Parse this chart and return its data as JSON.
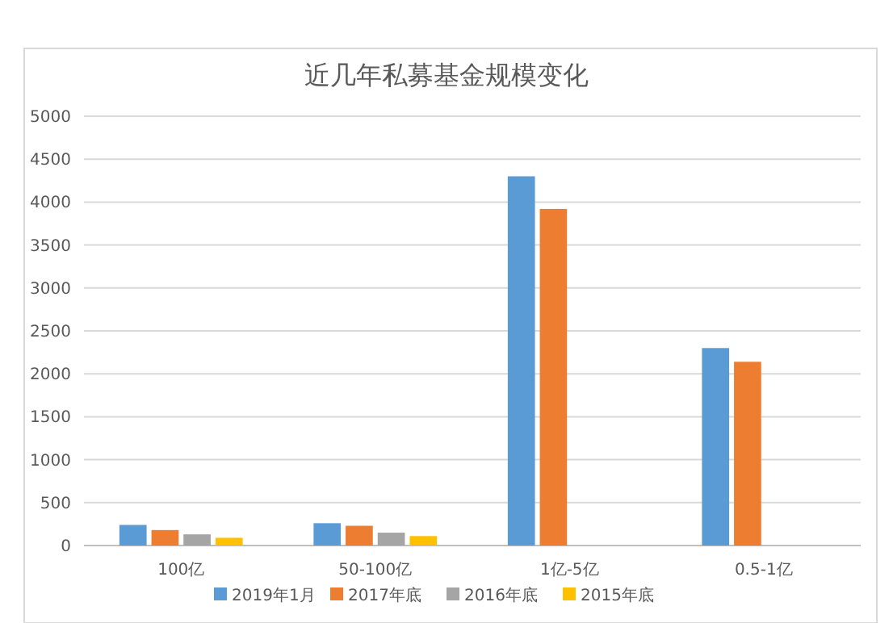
{
  "chart_data": {
    "type": "bar",
    "title": "近几年私募基金规模变化",
    "categories": [
      "100亿",
      "50-100亿",
      "1亿-5亿",
      "0.5-1亿"
    ],
    "series": [
      {
        "name": "2019年1月",
        "color": "#5b9bd5",
        "values": [
          240,
          260,
          4300,
          2300
        ]
      },
      {
        "name": "2017年底",
        "color": "#ed7d31",
        "values": [
          180,
          230,
          3920,
          2140
        ]
      },
      {
        "name": "2016年底",
        "color": "#a5a5a5",
        "values": [
          130,
          150,
          null,
          null
        ]
      },
      {
        "name": "2015年底",
        "color": "#ffc000",
        "values": [
          90,
          110,
          null,
          null
        ]
      }
    ],
    "ylim": [
      0,
      5000
    ],
    "yticks": [
      0,
      500,
      1000,
      1500,
      2000,
      2500,
      3000,
      3500,
      4000,
      4500,
      5000
    ],
    "grid": "y",
    "legend": "bottom"
  }
}
